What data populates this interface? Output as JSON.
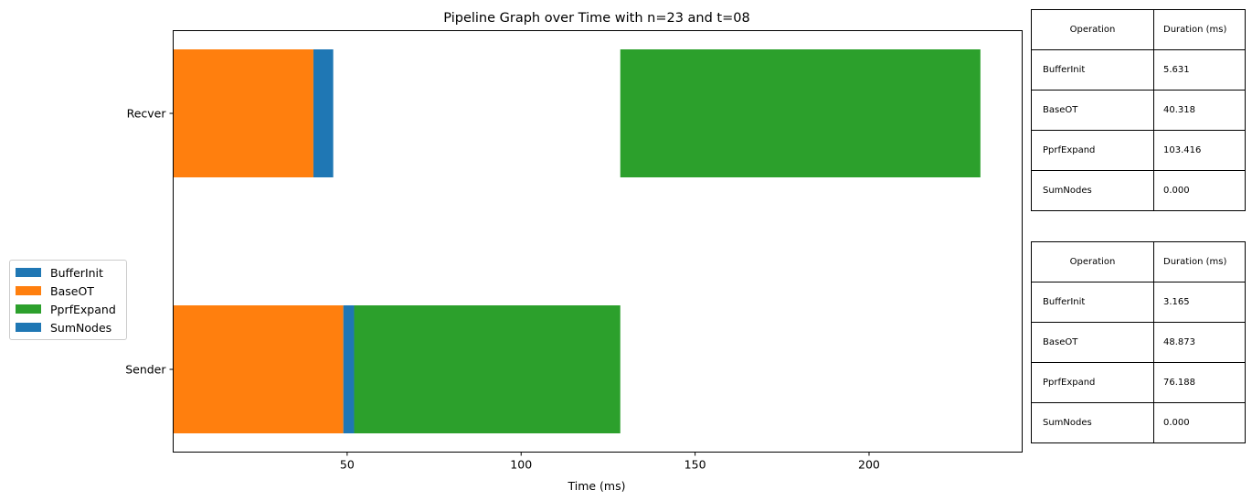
{
  "chart_data": {
    "type": "bar",
    "orientation": "horizontal",
    "title": "Pipeline Graph over Time with n=23 and t=08",
    "xlabel": "Time (ms)",
    "ylabel": "",
    "xlim": [
      0,
      244
    ],
    "xticks": [
      50,
      100,
      150,
      200
    ],
    "categories": [
      "Recver",
      "Sender"
    ],
    "segments": {
      "Recver": [
        {
          "op": "BaseOT",
          "start": 0.0,
          "end": 40.3
        },
        {
          "op": "BufferInit",
          "start": 40.3,
          "end": 46.0
        },
        {
          "op": "PprfExpand",
          "start": 128.5,
          "end": 232.0
        }
      ],
      "Sender": [
        {
          "op": "BaseOT",
          "start": 0.0,
          "end": 48.9
        },
        {
          "op": "BufferInit",
          "start": 48.9,
          "end": 52.0
        },
        {
          "op": "PprfExpand",
          "start": 52.0,
          "end": 128.5
        }
      ]
    },
    "legend": {
      "position": "center-left",
      "entries": [
        {
          "label": "BufferInit",
          "color": "#1f77b4"
        },
        {
          "label": "BaseOT",
          "color": "#ff7f0e"
        },
        {
          "label": "PprfExpand",
          "color": "#2ca02c"
        },
        {
          "label": "SumNodes",
          "color": "#1f77b4"
        }
      ]
    },
    "colors": {
      "BufferInit": "#1f77b4",
      "BaseOT": "#ff7f0e",
      "PprfExpand": "#2ca02c",
      "SumNodes": "#1f77b4"
    },
    "grid": false
  },
  "tables": [
    {
      "headers": [
        "Operation",
        "Duration (ms)"
      ],
      "rows": [
        [
          "BufferInit",
          "5.631"
        ],
        [
          "BaseOT",
          "40.318"
        ],
        [
          "PprfExpand",
          "103.416"
        ],
        [
          "SumNodes",
          "0.000"
        ]
      ]
    },
    {
      "headers": [
        "Operation",
        "Duration (ms)"
      ],
      "rows": [
        [
          "BufferInit",
          "3.165"
        ],
        [
          "BaseOT",
          "48.873"
        ],
        [
          "PprfExpand",
          "76.188"
        ],
        [
          "SumNodes",
          "0.000"
        ]
      ]
    }
  ]
}
